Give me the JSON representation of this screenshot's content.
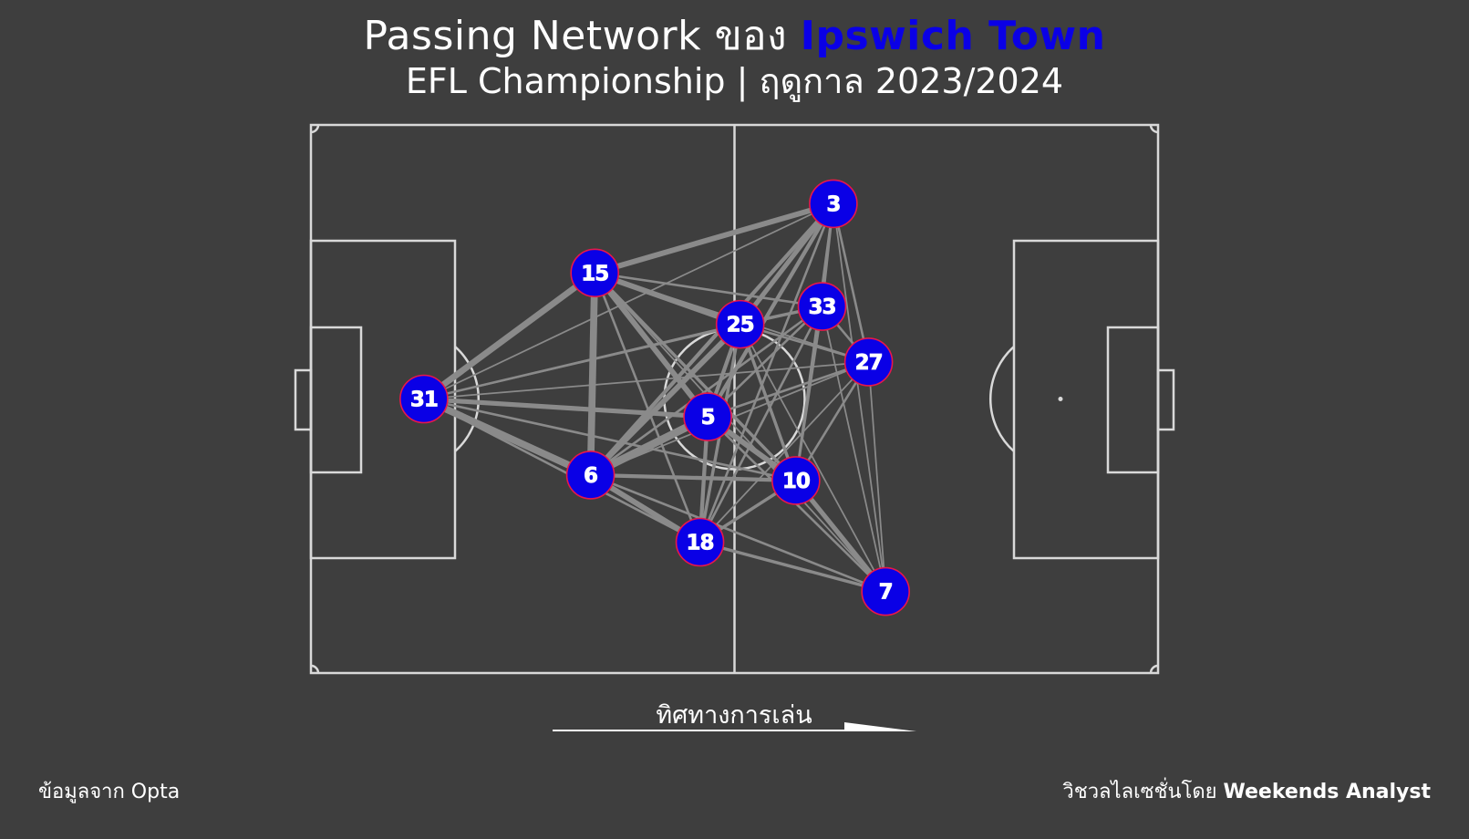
{
  "title": {
    "prefix": "Passing Network ของ",
    "team": "Ipswich Town"
  },
  "subtitle": "EFL Championship | ฤดูกาล 2023/2024",
  "direction_label": "ทิศทางการเล่น",
  "footer": {
    "source": "ข้อมูลจาก Opta",
    "viz_prefix": "วิชวลไลเซชั่นโดย",
    "viz_author": "Weekends Analyst"
  },
  "colors": {
    "background": "#3e3e3e",
    "pitch_lines": "#d9d9d9",
    "team": "#0a00e6",
    "node_edge": "#e8174b",
    "pass_lines": "#8a8a8a"
  },
  "chart_data": {
    "type": "network",
    "pitch": {
      "length": 120,
      "width": 80
    },
    "nodes": [
      {
        "id": "3",
        "x": 74.0,
        "y": 68.5
      },
      {
        "id": "15",
        "x": 40.2,
        "y": 58.4
      },
      {
        "id": "25",
        "x": 60.8,
        "y": 50.9
      },
      {
        "id": "33",
        "x": 72.4,
        "y": 53.5
      },
      {
        "id": "27",
        "x": 79.0,
        "y": 45.4
      },
      {
        "id": "31",
        "x": 16.0,
        "y": 40.0
      },
      {
        "id": "5",
        "x": 56.2,
        "y": 37.4
      },
      {
        "id": "6",
        "x": 39.6,
        "y": 28.9
      },
      {
        "id": "10",
        "x": 68.7,
        "y": 28.1
      },
      {
        "id": "18",
        "x": 55.1,
        "y": 19.1
      },
      {
        "id": "7",
        "x": 81.4,
        "y": 11.9
      }
    ],
    "edges": [
      [
        "31",
        "15",
        7
      ],
      [
        "31",
        "6",
        8
      ],
      [
        "31",
        "5",
        5
      ],
      [
        "31",
        "25",
        2
      ],
      [
        "31",
        "33",
        1
      ],
      [
        "31",
        "27",
        1
      ],
      [
        "31",
        "10",
        2
      ],
      [
        "31",
        "18",
        2
      ],
      [
        "31",
        "3",
        1
      ],
      [
        "15",
        "6",
        8
      ],
      [
        "15",
        "25",
        6
      ],
      [
        "15",
        "5",
        6
      ],
      [
        "15",
        "3",
        6
      ],
      [
        "15",
        "33",
        2
      ],
      [
        "15",
        "27",
        1
      ],
      [
        "15",
        "10",
        3
      ],
      [
        "15",
        "18",
        2
      ],
      [
        "15",
        "7",
        1
      ],
      [
        "6",
        "5",
        9
      ],
      [
        "6",
        "25",
        6
      ],
      [
        "6",
        "3",
        4
      ],
      [
        "6",
        "10",
        4
      ],
      [
        "6",
        "18",
        6
      ],
      [
        "6",
        "33",
        2
      ],
      [
        "6",
        "27",
        1
      ],
      [
        "6",
        "7",
        2
      ],
      [
        "25",
        "3",
        5
      ],
      [
        "25",
        "5",
        4
      ],
      [
        "25",
        "33",
        3
      ],
      [
        "25",
        "27",
        2
      ],
      [
        "25",
        "10",
        3
      ],
      [
        "25",
        "18",
        3
      ],
      [
        "25",
        "7",
        1
      ],
      [
        "5",
        "3",
        4
      ],
      [
        "5",
        "10",
        6
      ],
      [
        "5",
        "18",
        4
      ],
      [
        "5",
        "33",
        2
      ],
      [
        "5",
        "27",
        2
      ],
      [
        "5",
        "7",
        2
      ],
      [
        "3",
        "33",
        2
      ],
      [
        "3",
        "27",
        2
      ],
      [
        "3",
        "10",
        2
      ],
      [
        "3",
        "18",
        2
      ],
      [
        "3",
        "7",
        1
      ],
      [
        "33",
        "27",
        2
      ],
      [
        "33",
        "10",
        2
      ],
      [
        "33",
        "18",
        2
      ],
      [
        "33",
        "7",
        1
      ],
      [
        "27",
        "10",
        2
      ],
      [
        "27",
        "7",
        1
      ],
      [
        "27",
        "18",
        1
      ],
      [
        "10",
        "18",
        3
      ],
      [
        "10",
        "7",
        5
      ],
      [
        "18",
        "7",
        3
      ]
    ]
  }
}
